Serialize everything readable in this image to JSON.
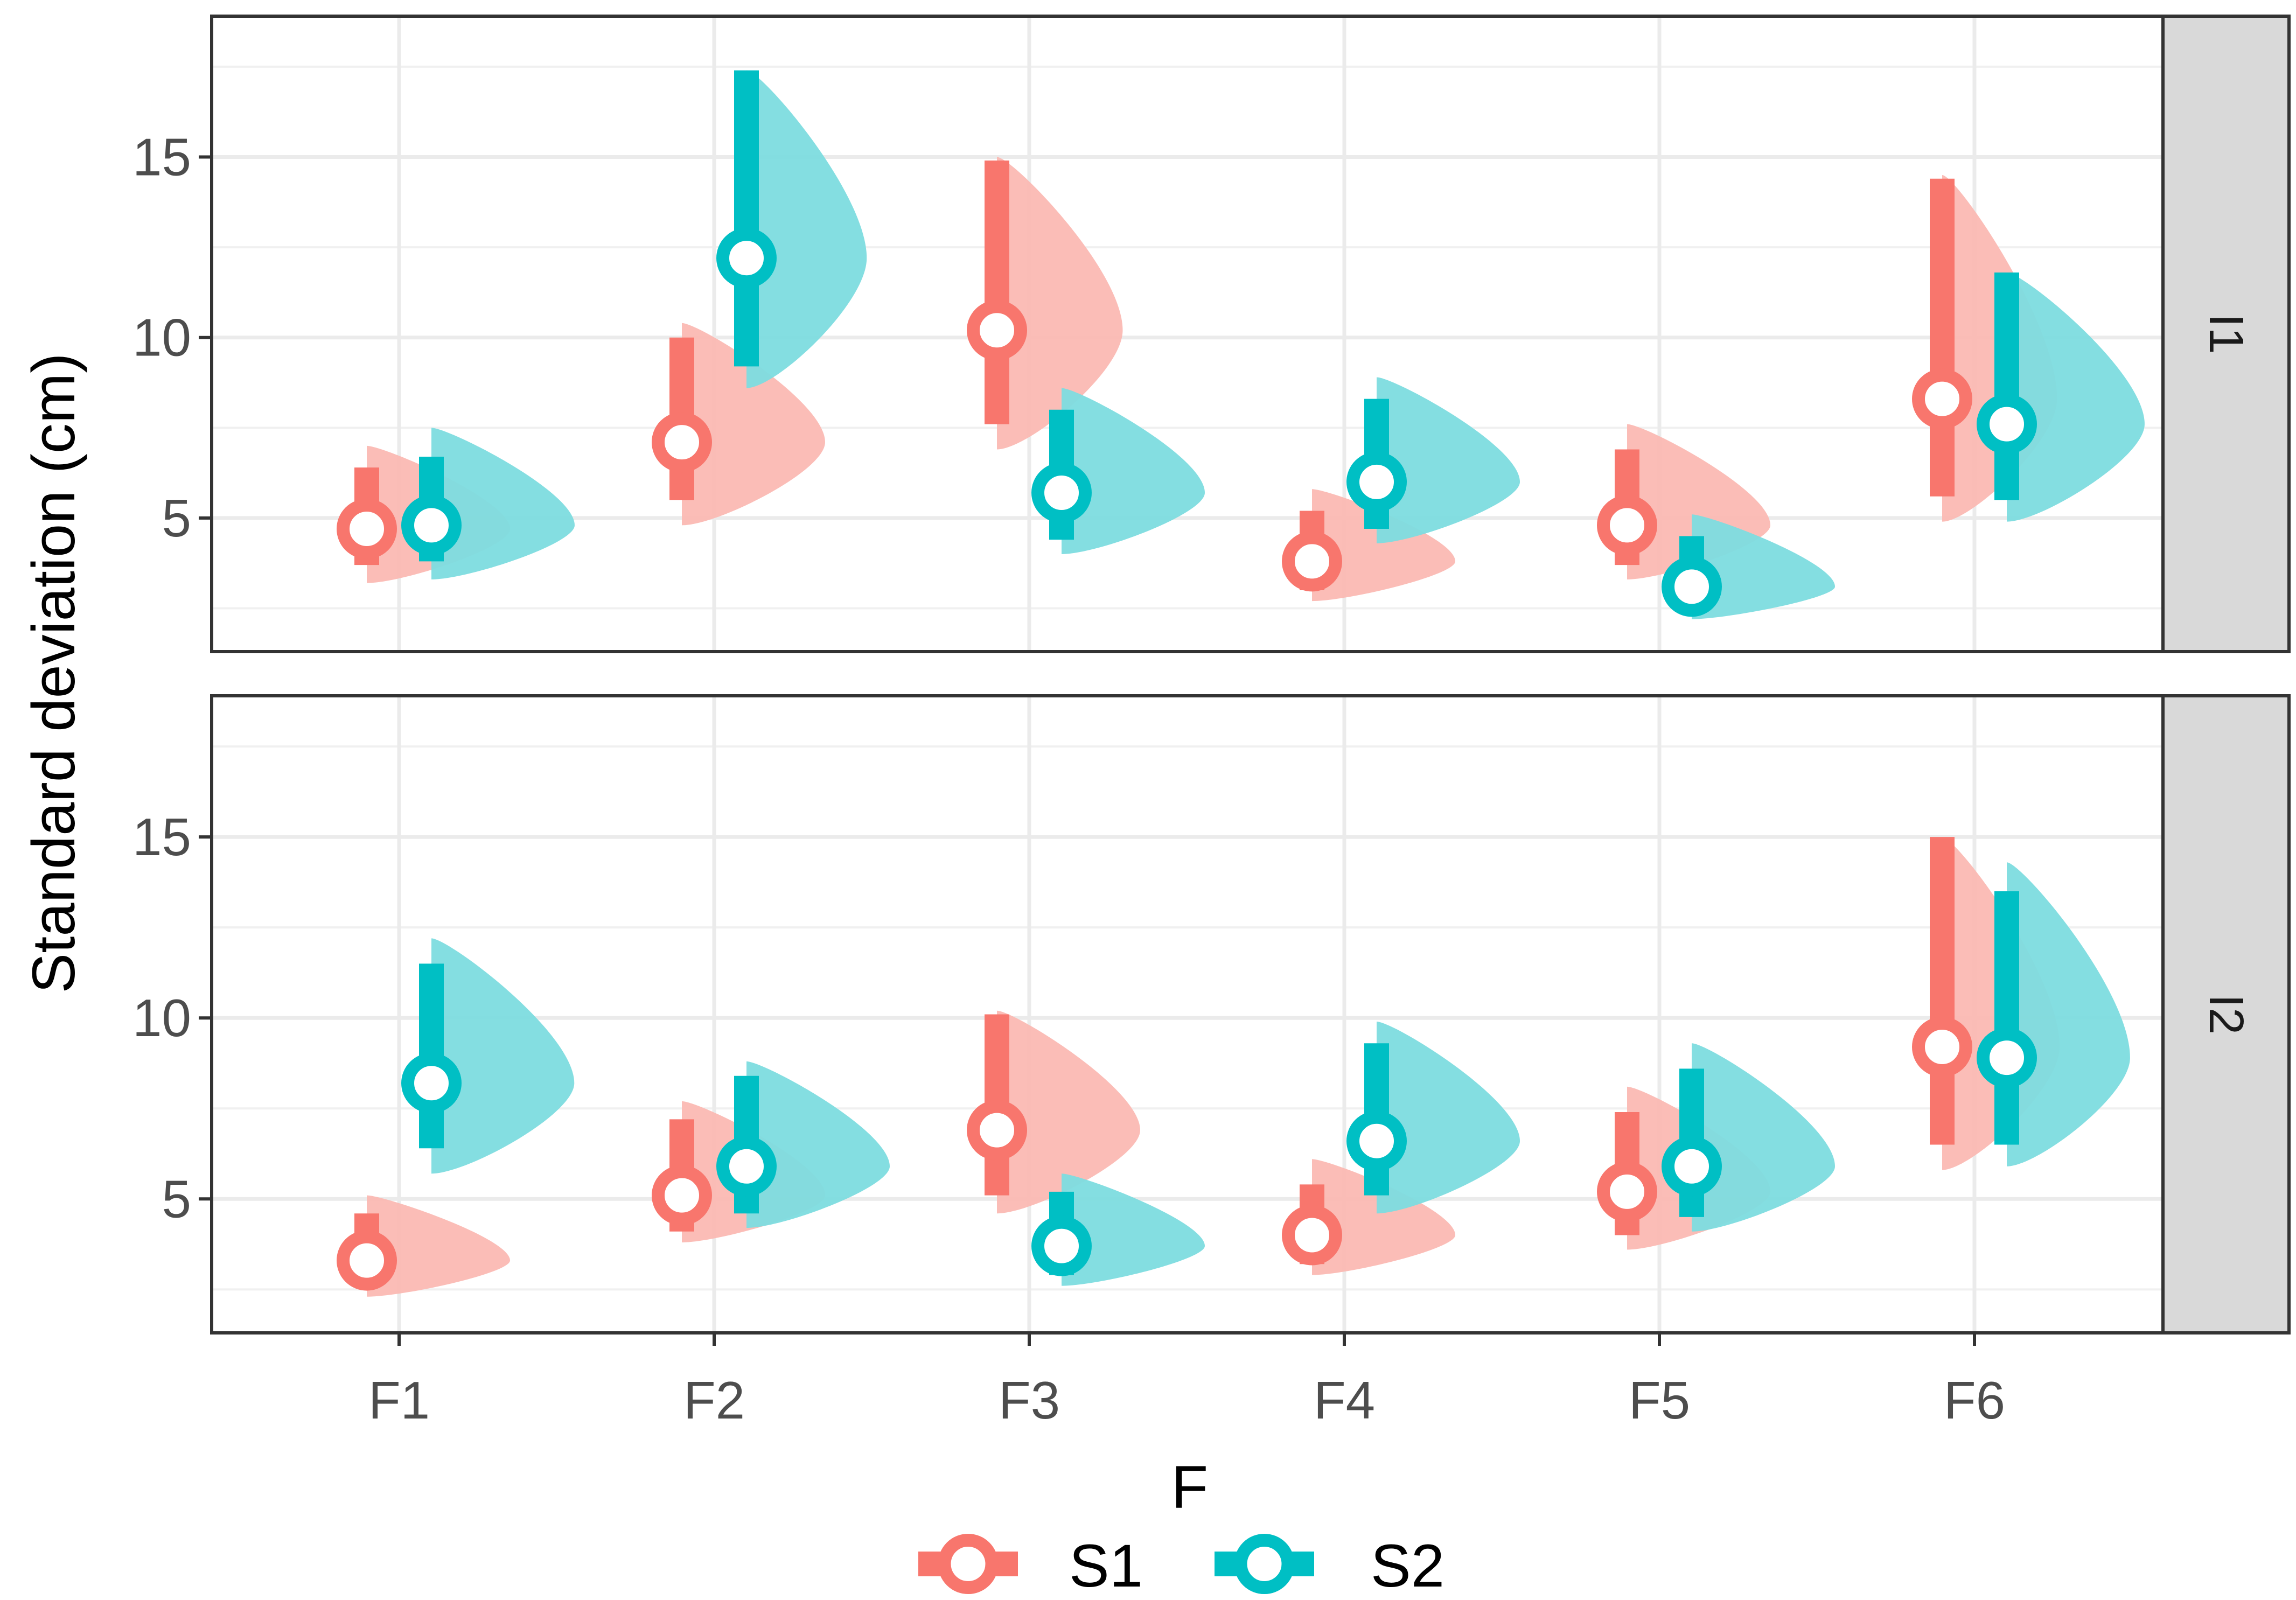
{
  "chart_data": {
    "type": "violin-pointinterval",
    "xlabel": "F",
    "ylabel": "Standard deviation (cm)",
    "categories": [
      "F1",
      "F2",
      "F3",
      "F4",
      "F5",
      "F6"
    ],
    "y_ticks": [
      5,
      10,
      15
    ],
    "ylim": [
      1.3,
      18.9
    ],
    "grid": true,
    "legend": {
      "position": "bottom",
      "title": "",
      "entries": [
        {
          "name": "S1",
          "color": "#F8766D"
        },
        {
          "name": "S2",
          "color": "#00BFC4"
        }
      ]
    },
    "colors": {
      "S1": "#F8766D",
      "S2": "#00BFC4",
      "S1_fill": "#FBB9B3",
      "S2_fill": "#7DDCDF"
    },
    "panels": [
      {
        "label": "I1",
        "series": [
          {
            "name": "S1",
            "values": [
              {
                "category": "F1",
                "point": 4.7,
                "interval": [
                  3.7,
                  6.4
                ],
                "range": [
                  3.2,
                  7.0
                ]
              },
              {
                "category": "F2",
                "point": 7.1,
                "interval": [
                  5.5,
                  10.0
                ],
                "range": [
                  4.8,
                  10.4
                ]
              },
              {
                "category": "F3",
                "point": 10.2,
                "interval": [
                  7.6,
                  14.9
                ],
                "range": [
                  6.9,
                  15.0
                ]
              },
              {
                "category": "F4",
                "point": 3.8,
                "interval": [
                  3.0,
                  5.2
                ],
                "range": [
                  2.7,
                  5.8
                ]
              },
              {
                "category": "F5",
                "point": 4.8,
                "interval": [
                  3.7,
                  6.9
                ],
                "range": [
                  3.3,
                  7.6
                ]
              },
              {
                "category": "F6",
                "point": 8.3,
                "interval": [
                  5.6,
                  14.4
                ],
                "range": [
                  4.9,
                  14.5
                ]
              }
            ]
          },
          {
            "name": "S2",
            "values": [
              {
                "category": "F1",
                "point": 4.8,
                "interval": [
                  3.8,
                  6.7
                ],
                "range": [
                  3.3,
                  7.5
                ]
              },
              {
                "category": "F2",
                "point": 12.2,
                "interval": [
                  9.2,
                  17.4
                ],
                "range": [
                  8.6,
                  17.4
                ]
              },
              {
                "category": "F3",
                "point": 5.7,
                "interval": [
                  4.4,
                  8.0
                ],
                "range": [
                  4.0,
                  8.6
                ]
              },
              {
                "category": "F4",
                "point": 6.0,
                "interval": [
                  4.7,
                  8.3
                ],
                "range": [
                  4.3,
                  8.9
                ]
              },
              {
                "category": "F5",
                "point": 3.1,
                "interval": [
                  2.5,
                  4.5
                ],
                "range": [
                  2.2,
                  5.1
                ]
              },
              {
                "category": "F6",
                "point": 7.6,
                "interval": [
                  5.5,
                  11.8
                ],
                "range": [
                  4.9,
                  11.8
                ]
              }
            ]
          }
        ]
      },
      {
        "label": "I2",
        "series": [
          {
            "name": "S1",
            "values": [
              {
                "category": "F1",
                "point": 3.3,
                "interval": [
                  2.7,
                  4.6
                ],
                "range": [
                  2.3,
                  5.1
                ]
              },
              {
                "category": "F2",
                "point": 5.1,
                "interval": [
                  4.1,
                  7.2
                ],
                "range": [
                  3.8,
                  7.7
                ]
              },
              {
                "category": "F3",
                "point": 6.9,
                "interval": [
                  5.1,
                  10.1
                ],
                "range": [
                  4.6,
                  10.2
                ]
              },
              {
                "category": "F4",
                "point": 4.0,
                "interval": [
                  3.2,
                  5.4
                ],
                "range": [
                  2.9,
                  6.1
                ]
              },
              {
                "category": "F5",
                "point": 5.2,
                "interval": [
                  4.0,
                  7.4
                ],
                "range": [
                  3.6,
                  8.1
                ]
              },
              {
                "category": "F6",
                "point": 9.2,
                "interval": [
                  6.5,
                  15.0
                ],
                "range": [
                  5.8,
                  15.0
                ]
              }
            ]
          },
          {
            "name": "S2",
            "values": [
              {
                "category": "F1",
                "point": 8.2,
                "interval": [
                  6.4,
                  11.5
                ],
                "range": [
                  5.7,
                  12.2
                ]
              },
              {
                "category": "F2",
                "point": 5.9,
                "interval": [
                  4.6,
                  8.4
                ],
                "range": [
                  4.2,
                  8.8
                ]
              },
              {
                "category": "F3",
                "point": 3.7,
                "interval": [
                  2.9,
                  5.2
                ],
                "range": [
                  2.6,
                  5.7
                ]
              },
              {
                "category": "F4",
                "point": 6.6,
                "interval": [
                  5.1,
                  9.3
                ],
                "range": [
                  4.6,
                  9.9
                ]
              },
              {
                "category": "F5",
                "point": 5.9,
                "interval": [
                  4.5,
                  8.6
                ],
                "range": [
                  4.1,
                  9.3
                ]
              },
              {
                "category": "F6",
                "point": 8.9,
                "interval": [
                  6.5,
                  13.5
                ],
                "range": [
                  5.9,
                  14.3
                ]
              }
            ]
          }
        ]
      }
    ]
  }
}
